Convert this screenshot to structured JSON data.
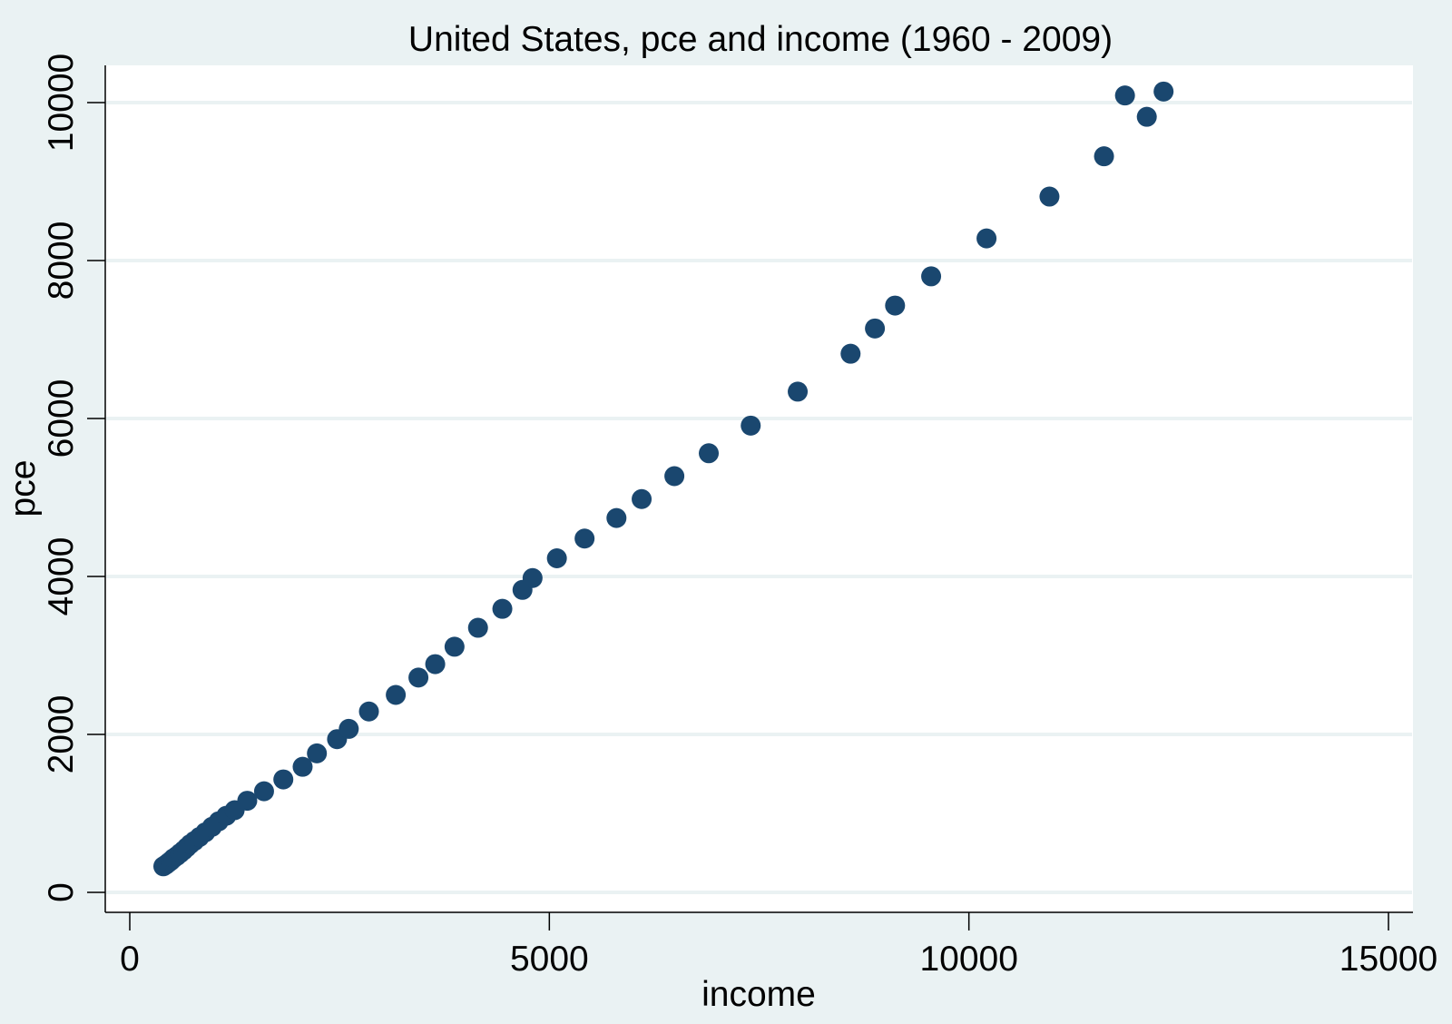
{
  "chart_data": {
    "type": "scatter",
    "title": "United States, pce and income (1960 - 2009)",
    "xlabel": "income",
    "ylabel": "pce",
    "xlim": [
      0,
      15000
    ],
    "ylim": [
      0,
      10000
    ],
    "xticks": [
      "0",
      "5000",
      "10000",
      "15000"
    ],
    "yticks": [
      "0",
      "2000",
      "4000",
      "6000",
      "8000",
      "10000"
    ],
    "grid": true,
    "marker_color": "#1a476f",
    "background_color": "#eaf2f3",
    "plot_background_color": "#ffffff",
    "gridline_color": "#eaf2f3",
    "points": [
      {
        "x": 400,
        "y": 330
      },
      {
        "x": 430,
        "y": 350
      },
      {
        "x": 460,
        "y": 375
      },
      {
        "x": 490,
        "y": 400
      },
      {
        "x": 520,
        "y": 430
      },
      {
        "x": 560,
        "y": 460
      },
      {
        "x": 600,
        "y": 495
      },
      {
        "x": 640,
        "y": 530
      },
      {
        "x": 680,
        "y": 570
      },
      {
        "x": 720,
        "y": 610
      },
      {
        "x": 770,
        "y": 650
      },
      {
        "x": 830,
        "y": 700
      },
      {
        "x": 900,
        "y": 760
      },
      {
        "x": 980,
        "y": 830
      },
      {
        "x": 1060,
        "y": 900
      },
      {
        "x": 1150,
        "y": 970
      },
      {
        "x": 1250,
        "y": 1040
      },
      {
        "x": 1400,
        "y": 1160
      },
      {
        "x": 1600,
        "y": 1280
      },
      {
        "x": 1830,
        "y": 1430
      },
      {
        "x": 2060,
        "y": 1590
      },
      {
        "x": 2230,
        "y": 1760
      },
      {
        "x": 2470,
        "y": 1940
      },
      {
        "x": 2610,
        "y": 2070
      },
      {
        "x": 2850,
        "y": 2290
      },
      {
        "x": 3170,
        "y": 2500
      },
      {
        "x": 3440,
        "y": 2720
      },
      {
        "x": 3640,
        "y": 2890
      },
      {
        "x": 3870,
        "y": 3110
      },
      {
        "x": 4150,
        "y": 3350
      },
      {
        "x": 4440,
        "y": 3590
      },
      {
        "x": 4680,
        "y": 3830
      },
      {
        "x": 4800,
        "y": 3980
      },
      {
        "x": 5090,
        "y": 4230
      },
      {
        "x": 5420,
        "y": 4480
      },
      {
        "x": 5800,
        "y": 4740
      },
      {
        "x": 6100,
        "y": 4980
      },
      {
        "x": 6490,
        "y": 5270
      },
      {
        "x": 6900,
        "y": 5560
      },
      {
        "x": 7400,
        "y": 5910
      },
      {
        "x": 7960,
        "y": 6340
      },
      {
        "x": 8590,
        "y": 6820
      },
      {
        "x": 8880,
        "y": 7140
      },
      {
        "x": 9120,
        "y": 7430
      },
      {
        "x": 9550,
        "y": 7800
      },
      {
        "x": 10210,
        "y": 8280
      },
      {
        "x": 10960,
        "y": 8810
      },
      {
        "x": 11610,
        "y": 9320
      },
      {
        "x": 11860,
        "y": 10090
      },
      {
        "x": 12120,
        "y": 9820
      },
      {
        "x": 12320,
        "y": 10140
      }
    ]
  }
}
